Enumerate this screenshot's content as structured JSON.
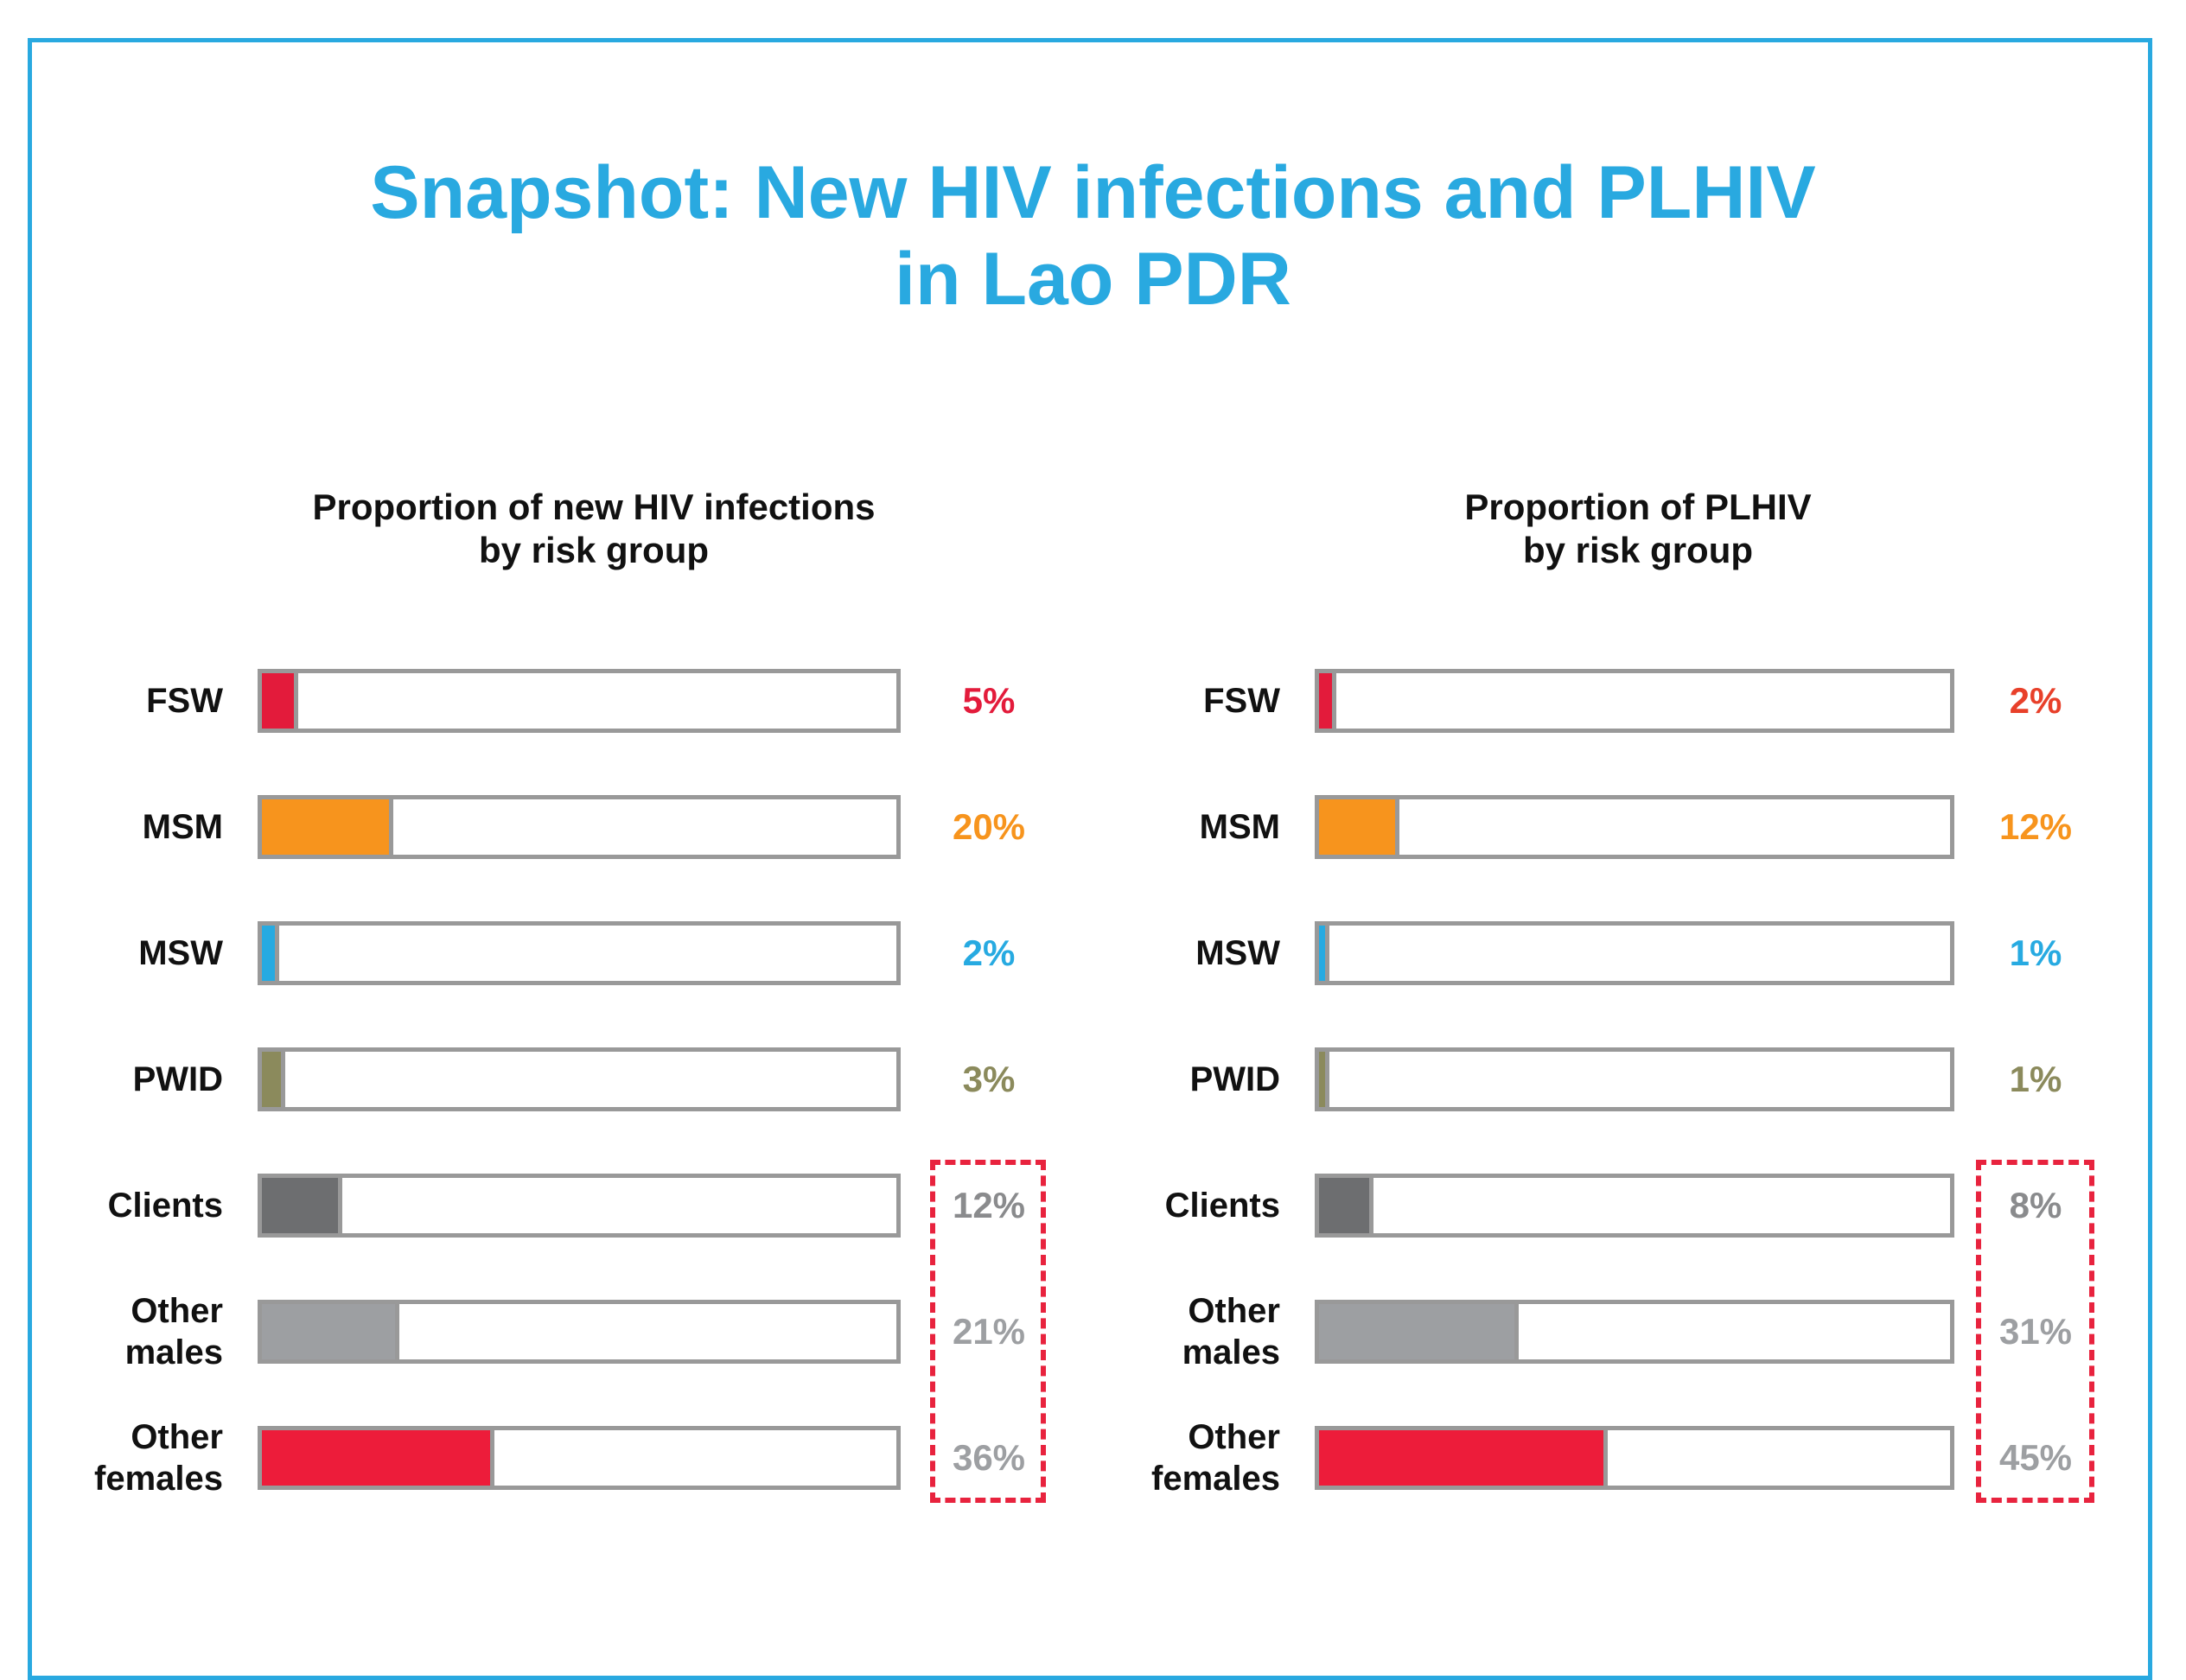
{
  "title": [
    "Snapshot: New HIV infections and PLHIV",
    "in Lao PDR"
  ],
  "chart_data": [
    {
      "type": "bar",
      "orientation": "horizontal",
      "title": [
        "Proportion of new HIV infections",
        "by risk group"
      ],
      "categories": [
        "FSW",
        "MSM",
        "MSW",
        "PWID",
        "Clients",
        "Other males",
        "Other females"
      ],
      "values": [
        5,
        20,
        2,
        3,
        12,
        21,
        36
      ],
      "value_labels": [
        "5%",
        "20%",
        "2%",
        "3%",
        "12%",
        "21%",
        "36%"
      ],
      "colors": [
        "#e31b3b",
        "#f7941d",
        "#27aae1",
        "#8b8a5c",
        "#6d6e70",
        "#9d9fa2",
        "#ed1c3a"
      ],
      "label_colors": [
        "#e31b3b",
        "#f7941d",
        "#27aae1",
        "#8b8a5c",
        "#8a8b8d",
        "#9d9fa2",
        "#9d9fa2"
      ],
      "xlim": [
        0,
        100
      ]
    },
    {
      "type": "bar",
      "orientation": "horizontal",
      "title": [
        "Proportion of PLHIV",
        "by risk group"
      ],
      "categories": [
        "FSW",
        "MSM",
        "MSW",
        "PWID",
        "Clients",
        "Other males",
        "Other females"
      ],
      "values": [
        2,
        12,
        1,
        1,
        8,
        31,
        45
      ],
      "value_labels": [
        "2%",
        "12%",
        "1%",
        "1%",
        "8%",
        "31%",
        "45%"
      ],
      "colors": [
        "#e31b3b",
        "#f7941d",
        "#27aae1",
        "#8b8a5c",
        "#6d6e70",
        "#9d9fa2",
        "#ed1c3a"
      ],
      "label_colors": [
        "#e8402a",
        "#f7941d",
        "#27aae1",
        "#8b8a5c",
        "#8a8b8d",
        "#9d9fa2",
        "#9d9fa2"
      ],
      "xlim": [
        0,
        100
      ]
    }
  ]
}
